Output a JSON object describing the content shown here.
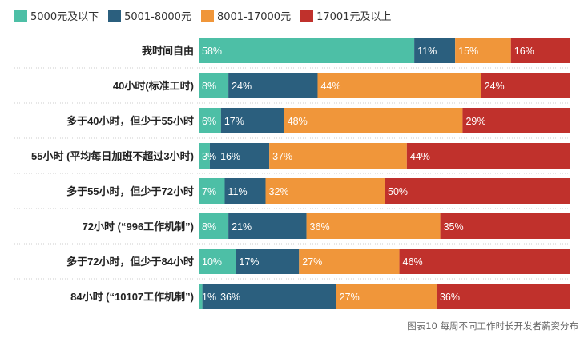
{
  "chart_data": {
    "type": "bar",
    "orientation": "horizontal",
    "stacked": true,
    "percent": true,
    "caption": "图表10 每周不同工作时长开发者薪资分布",
    "categories": [
      "我时间自由",
      "40小时(标准工时)",
      "多于40小时，但少于55小时",
      "55小时 (平均每日加班不超过3小时)",
      "多于55小时，但少于72小时",
      "72小时 (“996工作机制”)",
      "多于72小时，但少于84小时",
      "84小时 (“10107工作机制”)"
    ],
    "series": [
      {
        "name": "5000元及以下",
        "color": "#4dbfa6",
        "values": [
          58,
          8,
          6,
          3,
          7,
          8,
          10,
          1
        ]
      },
      {
        "name": "5001-8000元",
        "color": "#2b5f7e",
        "values": [
          11,
          24,
          17,
          16,
          11,
          21,
          17,
          36
        ]
      },
      {
        "name": "8001-17000元",
        "color": "#f0963a",
        "values": [
          15,
          44,
          48,
          37,
          32,
          36,
          27,
          27
        ]
      },
      {
        "name": "17001元及以上",
        "color": "#c0312c",
        "values": [
          16,
          24,
          29,
          44,
          50,
          35,
          46,
          36
        ]
      }
    ],
    "xlim": [
      0,
      100
    ],
    "legend": "top-left",
    "grid": false
  }
}
